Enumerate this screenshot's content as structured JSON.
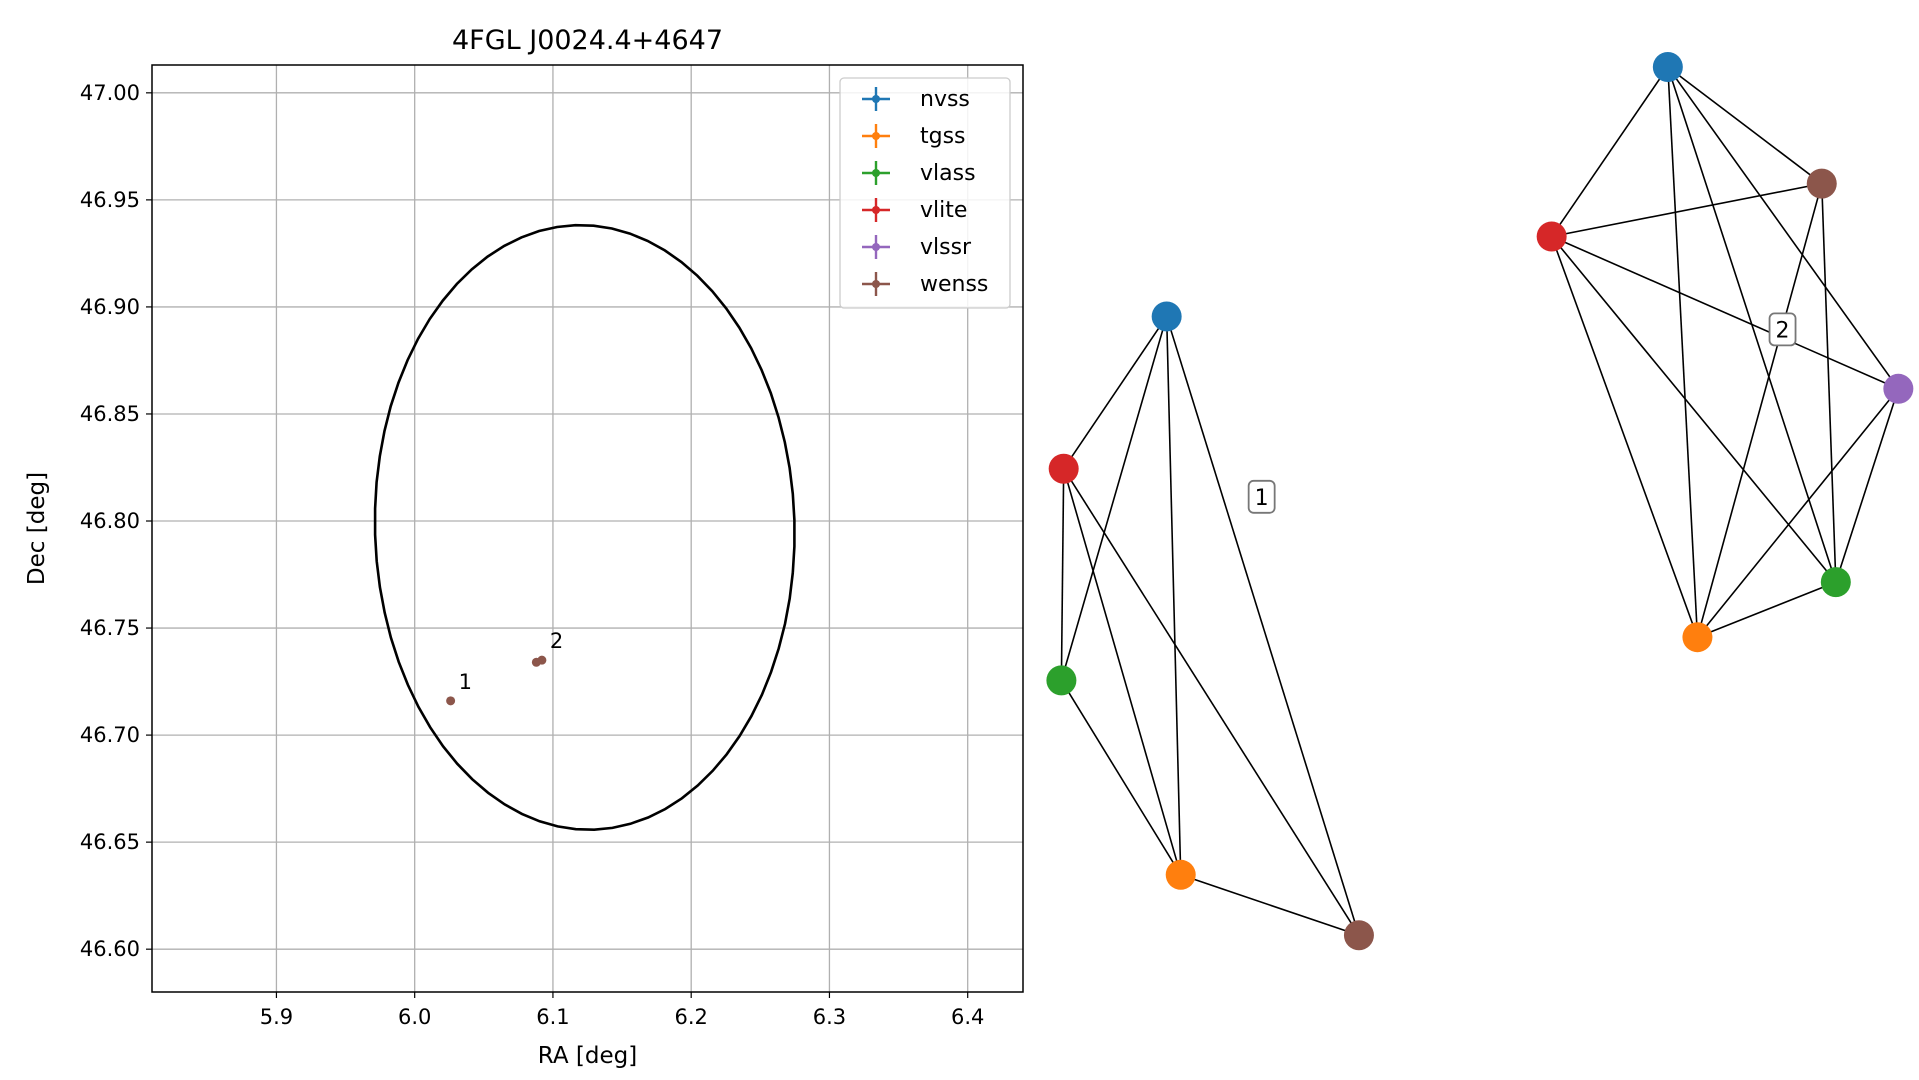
{
  "chart_data": [
    {
      "type": "scatter",
      "title": "4FGL J0024.4+4647",
      "xlabel": "RA [deg]",
      "ylabel": "Dec [deg]",
      "xlim": [
        5.81,
        6.44
      ],
      "ylim": [
        46.58,
        47.013
      ],
      "xticks": [
        "5.9",
        "6.0",
        "6.1",
        "6.2",
        "6.3",
        "6.4"
      ],
      "yticks": [
        "46.60",
        "46.65",
        "46.70",
        "46.75",
        "46.80",
        "46.85",
        "46.90",
        "46.95",
        "47.00"
      ],
      "grid": true,
      "legend_position": "top-right",
      "legend": [
        {
          "name": "nvss",
          "color": "#1f77b4"
        },
        {
          "name": "tgss",
          "color": "#ff7f0e"
        },
        {
          "name": "vlass",
          "color": "#2ca02c"
        },
        {
          "name": "vlite",
          "color": "#d62728"
        },
        {
          "name": "vlssr",
          "color": "#9467bd"
        },
        {
          "name": "wenss",
          "color": "#8c564b"
        }
      ],
      "ellipse": {
        "center": [
          6.123,
          46.797
        ],
        "ra_semi_axis": 0.152,
        "dec_semi_axis": 0.141,
        "rotation_deg": -8
      },
      "points": [
        {
          "x": 6.026,
          "y": 46.716,
          "color": "#8c564b",
          "label": "1"
        },
        {
          "x": 6.092,
          "y": 46.735,
          "color": "#8c564b",
          "label": "2"
        },
        {
          "x": 6.088,
          "y": 46.734,
          "color": "#8c564b",
          "label": ""
        }
      ]
    },
    {
      "type": "network",
      "cluster_label": "1",
      "nodes": [
        {
          "id": "nvss",
          "color": "#1f77b4",
          "x": 0.307,
          "y": 0.707
        },
        {
          "id": "vlite",
          "color": "#d62728",
          "x": 0.036,
          "y": 0.566
        },
        {
          "id": "vlass",
          "color": "#2ca02c",
          "x": 0.03,
          "y": 0.37
        },
        {
          "id": "tgss",
          "color": "#ff7f0e",
          "x": 0.344,
          "y": 0.19
        },
        {
          "id": "wenss",
          "color": "#8c564b",
          "x": 0.813,
          "y": 0.134
        }
      ],
      "edges": [
        [
          "nvss",
          "vlite"
        ],
        [
          "nvss",
          "vlass"
        ],
        [
          "nvss",
          "tgss"
        ],
        [
          "nvss",
          "wenss"
        ],
        [
          "vlite",
          "vlass"
        ],
        [
          "vlite",
          "tgss"
        ],
        [
          "vlite",
          "wenss"
        ],
        [
          "vlass",
          "tgss"
        ],
        [
          "tgss",
          "wenss"
        ]
      ]
    },
    {
      "type": "network",
      "cluster_label": "2",
      "nodes": [
        {
          "id": "nvss",
          "color": "#1f77b4",
          "x": 0.332,
          "y": 0.938
        },
        {
          "id": "wenss",
          "color": "#8c564b",
          "x": 0.748,
          "y": 0.83
        },
        {
          "id": "vlite",
          "color": "#d62728",
          "x": 0.018,
          "y": 0.781
        },
        {
          "id": "vlssr",
          "color": "#9467bd",
          "x": 0.955,
          "y": 0.64
        },
        {
          "id": "vlass",
          "color": "#2ca02c",
          "x": 0.786,
          "y": 0.461
        },
        {
          "id": "tgss",
          "color": "#ff7f0e",
          "x": 0.412,
          "y": 0.41
        }
      ],
      "edges": [
        [
          "nvss",
          "vlite"
        ],
        [
          "nvss",
          "wenss"
        ],
        [
          "nvss",
          "vlssr"
        ],
        [
          "nvss",
          "vlass"
        ],
        [
          "nvss",
          "tgss"
        ],
        [
          "vlite",
          "wenss"
        ],
        [
          "vlite",
          "vlssr"
        ],
        [
          "vlite",
          "vlass"
        ],
        [
          "vlite",
          "tgss"
        ],
        [
          "wenss",
          "vlass"
        ],
        [
          "wenss",
          "tgss"
        ],
        [
          "vlssr",
          "vlass"
        ],
        [
          "vlssr",
          "tgss"
        ],
        [
          "vlass",
          "tgss"
        ]
      ]
    }
  ]
}
